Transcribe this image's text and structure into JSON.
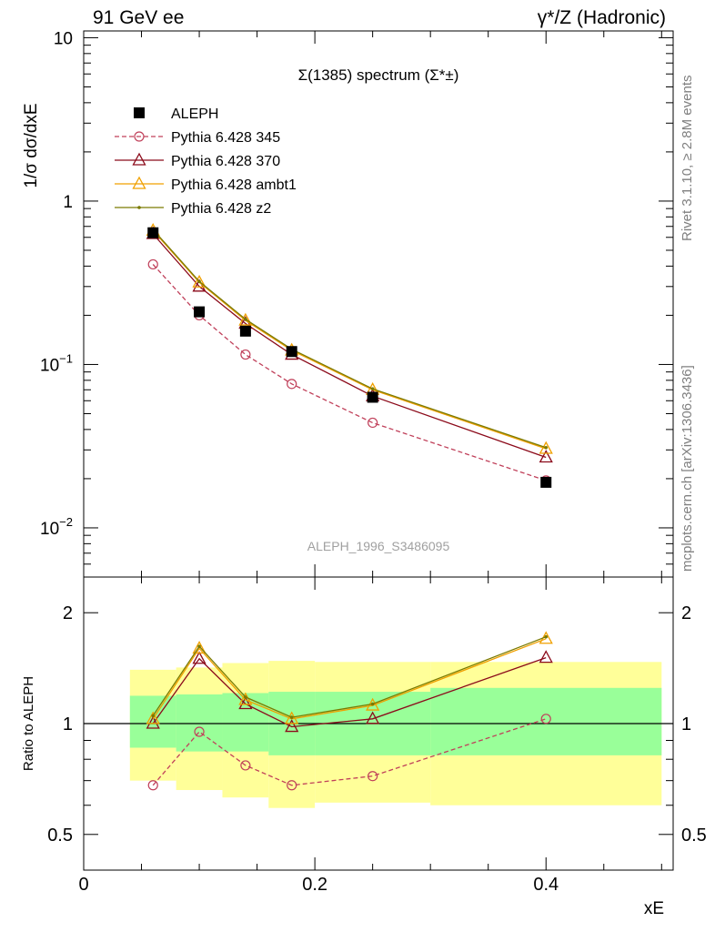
{
  "header": {
    "left": "91 GeV ee",
    "right": "γ*/Z (Hadronic)"
  },
  "side_text": {
    "rivet": "Rivet 3.1.10, ≥ 2.8M events",
    "mcplots": "mcplots.cern.ch [arXiv:1306.3436]"
  },
  "chart_data": [
    {
      "type": "line",
      "panel": "main",
      "title": "Σ(1385) spectrum (Σ*±)",
      "ylabel": "1/σ dσ/dxE",
      "yscale": "log",
      "ylim": [
        0.005,
        11
      ],
      "xlim": [
        0,
        0.51
      ],
      "yticks": [
        {
          "value": 10,
          "label": "10"
        },
        {
          "value": 1,
          "label": "1"
        },
        {
          "value": 0.1,
          "label": "10-1"
        },
        {
          "value": 0.01,
          "label": "10-2"
        }
      ],
      "watermark": "ALEPH_1996_S3486095",
      "legend_position": "top-left",
      "series": [
        {
          "name": "ALEPH",
          "color": "#000000",
          "marker": "square",
          "line": "none",
          "x": [
            0.06,
            0.1,
            0.14,
            0.18,
            0.25,
            0.4
          ],
          "y": [
            0.64,
            0.21,
            0.16,
            0.12,
            0.063,
            0.019
          ]
        },
        {
          "name": "Pythia 6.428 345",
          "color": "#c0405a",
          "marker": "circle",
          "line": "dashed",
          "x": [
            0.06,
            0.1,
            0.14,
            0.18,
            0.25,
            0.4
          ],
          "y": [
            0.41,
            0.2,
            0.115,
            0.076,
            0.044,
            0.0195
          ]
        },
        {
          "name": "Pythia 6.428 370",
          "color": "#8b0a1a",
          "marker": "triangle",
          "line": "solid",
          "x": [
            0.06,
            0.1,
            0.14,
            0.18,
            0.25,
            0.4
          ],
          "y": [
            0.63,
            0.3,
            0.178,
            0.115,
            0.064,
            0.027
          ]
        },
        {
          "name": "Pythia 6.428 ambt1",
          "color": "#f0a000",
          "marker": "triangle",
          "line": "solid",
          "x": [
            0.06,
            0.1,
            0.14,
            0.18,
            0.25,
            0.4
          ],
          "y": [
            0.66,
            0.318,
            0.186,
            0.122,
            0.07,
            0.0305
          ]
        },
        {
          "name": "Pythia 6.428 z2",
          "color": "#7a7a00",
          "marker": "dot",
          "line": "solid",
          "x": [
            0.06,
            0.1,
            0.14,
            0.18,
            0.25,
            0.4
          ],
          "y": [
            0.67,
            0.322,
            0.189,
            0.124,
            0.071,
            0.031
          ]
        }
      ]
    },
    {
      "type": "line",
      "panel": "ratio",
      "ylabel": "Ratio to ALEPH",
      "xlabel": "xE",
      "yscale": "log",
      "ylim": [
        0.4,
        2.5
      ],
      "xlim": [
        0,
        0.51
      ],
      "yticks": [
        {
          "value": 2,
          "label": "2"
        },
        {
          "value": 1,
          "label": "1"
        },
        {
          "value": 0.5,
          "label": "0.5"
        }
      ],
      "xticks": [
        {
          "value": 0,
          "label": "0"
        },
        {
          "value": 0.2,
          "label": "0.2"
        },
        {
          "value": 0.4,
          "label": "0.4"
        }
      ],
      "bands": [
        {
          "x0": 0.04,
          "x1": 0.08,
          "inner": [
            0.86,
            1.19
          ],
          "outer": [
            0.7,
            1.4
          ]
        },
        {
          "x0": 0.08,
          "x1": 0.12,
          "inner": [
            0.84,
            1.2
          ],
          "outer": [
            0.66,
            1.42
          ]
        },
        {
          "x0": 0.12,
          "x1": 0.16,
          "inner": [
            0.84,
            1.21
          ],
          "outer": [
            0.63,
            1.46
          ]
        },
        {
          "x0": 0.16,
          "x1": 0.2,
          "inner": [
            0.82,
            1.22
          ],
          "outer": [
            0.59,
            1.48
          ]
        },
        {
          "x0": 0.2,
          "x1": 0.3,
          "inner": [
            0.82,
            1.22
          ],
          "outer": [
            0.61,
            1.47
          ]
        },
        {
          "x0": 0.3,
          "x1": 0.5,
          "inner": [
            0.82,
            1.25
          ],
          "outer": [
            0.6,
            1.47
          ]
        }
      ],
      "series": [
        {
          "name": "Pythia 6.428 345",
          "color": "#c0405a",
          "marker": "circle",
          "line": "dashed",
          "x": [
            0.06,
            0.1,
            0.14,
            0.18,
            0.25,
            0.4
          ],
          "y": [
            0.68,
            0.95,
            0.77,
            0.68,
            0.72,
            1.03
          ]
        },
        {
          "name": "Pythia 6.428 370",
          "color": "#8b0a1a",
          "marker": "triangle",
          "line": "solid",
          "x": [
            0.06,
            0.1,
            0.14,
            0.18,
            0.25,
            0.4
          ],
          "y": [
            1.0,
            1.5,
            1.13,
            0.98,
            1.03,
            1.51
          ]
        },
        {
          "name": "Pythia 6.428 ambt1",
          "color": "#f0a000",
          "marker": "triangle",
          "line": "solid",
          "x": [
            0.06,
            0.1,
            0.14,
            0.18,
            0.25,
            0.4
          ],
          "y": [
            1.03,
            1.6,
            1.16,
            1.03,
            1.12,
            1.7
          ]
        },
        {
          "name": "Pythia 6.428 z2",
          "color": "#7a7a00",
          "marker": "dot",
          "line": "solid",
          "x": [
            0.06,
            0.1,
            0.14,
            0.18,
            0.25,
            0.4
          ],
          "y": [
            1.05,
            1.62,
            1.18,
            1.04,
            1.13,
            1.72
          ]
        }
      ]
    }
  ]
}
